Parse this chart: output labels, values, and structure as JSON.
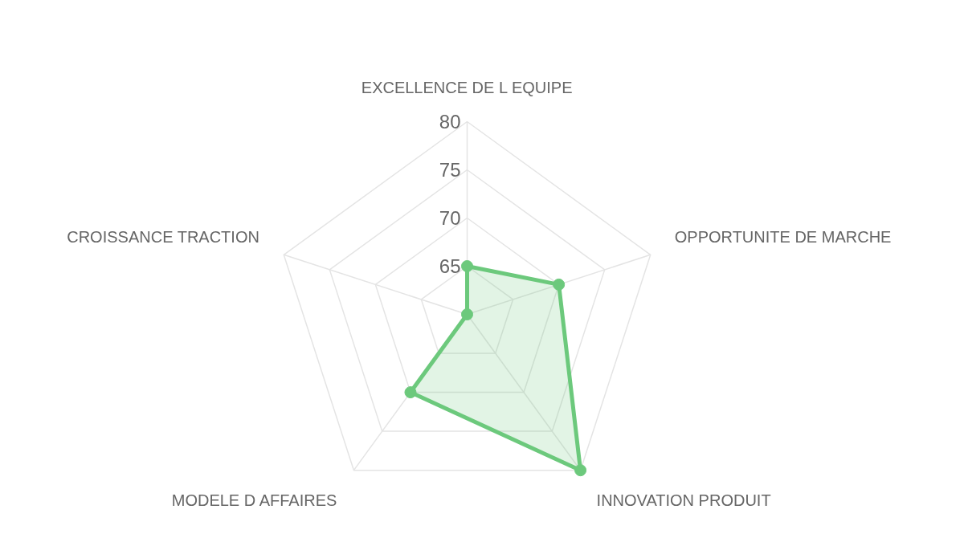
{
  "chart_data": {
    "type": "radar",
    "categories": [
      "EXCELLENCE DE L EQUIPE",
      "OPPORTUNITE DE MARCHE",
      "INNOVATION PRODUIT",
      "MODELE D AFFAIRES",
      "CROISSANCE TRACTION"
    ],
    "series": [
      {
        "color": "#6cc97c",
        "values": [
          65,
          70,
          80,
          70,
          60
        ]
      }
    ],
    "ylim": [
      60,
      80
    ],
    "yticks": [
      65,
      70,
      75,
      80
    ],
    "grid": true,
    "marker": "circle",
    "line_style": "solid"
  }
}
